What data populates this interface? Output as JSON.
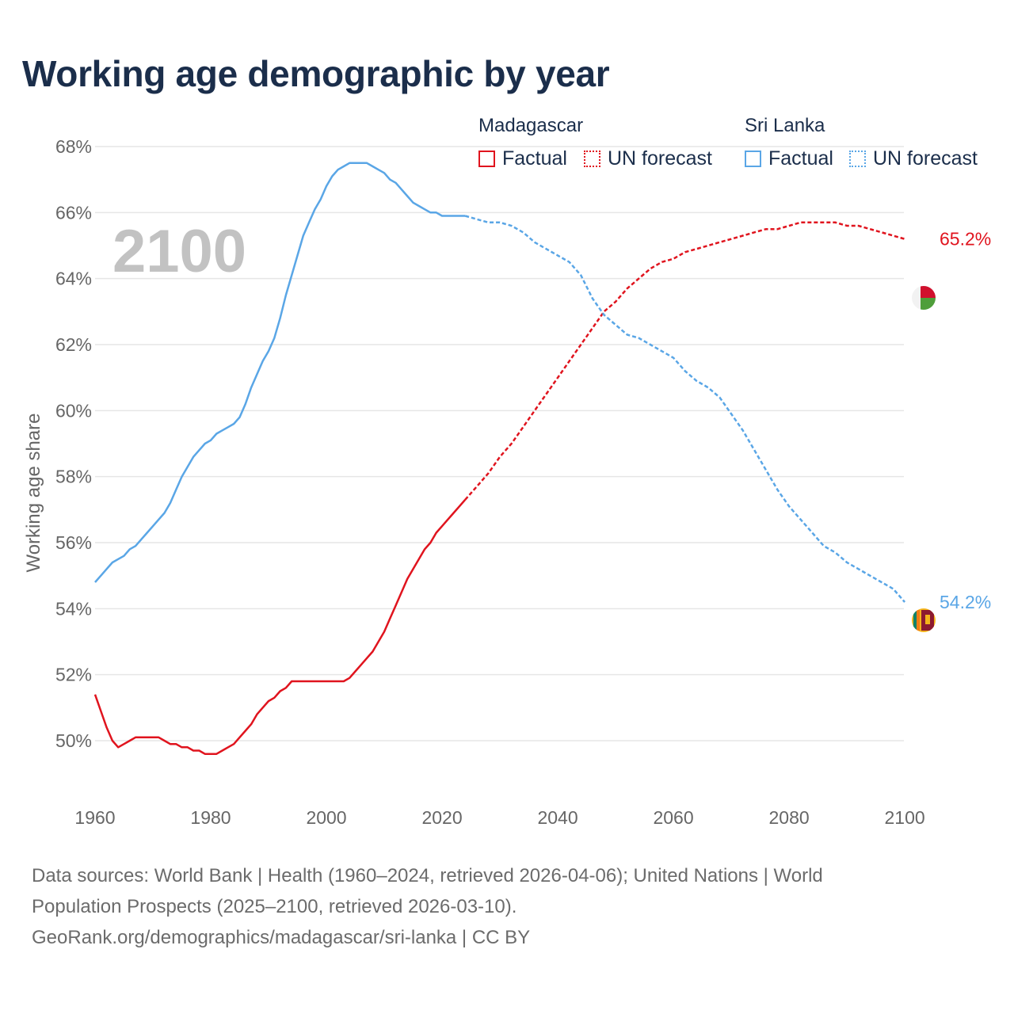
{
  "title": "Working age demographic by year",
  "legend": {
    "madagascar": {
      "title": "Madagascar",
      "factual": "Factual",
      "forecast": "UN forecast",
      "color": "#e0141e"
    },
    "srilanka": {
      "title": "Sri Lanka",
      "factual": "Factual",
      "forecast": "UN forecast",
      "color": "#5aa6e6"
    }
  },
  "year_watermark": "2100",
  "footer": {
    "line1": "Data sources: World Bank | Health (1960–2024, retrieved 2026-04-06); United Nations | World",
    "line2": "Population Prospects (2025–2100, retrieved 2026-03-10).",
    "line3": "GeoRank.org/demographics/madagascar/sri-lanka | CC BY"
  },
  "chart_data": {
    "type": "line",
    "title": "Working age demographic by year",
    "xlabel": "",
    "ylabel": "Working age share",
    "xlim": [
      1960,
      2103
    ],
    "ylim": [
      48.2,
      68.6
    ],
    "xticks": [
      1960,
      1980,
      2000,
      2020,
      2040,
      2060,
      2080,
      2100
    ],
    "yticks": [
      50,
      52,
      54,
      56,
      58,
      60,
      62,
      64,
      66,
      68
    ],
    "ytick_suffix": "%",
    "forecast_start": 2024,
    "series": [
      {
        "name": "Madagascar",
        "color": "#e0141e",
        "end_label": "65.2%",
        "points": [
          [
            1960,
            51.4
          ],
          [
            1961,
            50.9
          ],
          [
            1962,
            50.4
          ],
          [
            1963,
            50.0
          ],
          [
            1964,
            49.8
          ],
          [
            1965,
            49.9
          ],
          [
            1966,
            50.0
          ],
          [
            1967,
            50.1
          ],
          [
            1968,
            50.1
          ],
          [
            1969,
            50.1
          ],
          [
            1970,
            50.1
          ],
          [
            1971,
            50.1
          ],
          [
            1972,
            50.0
          ],
          [
            1973,
            49.9
          ],
          [
            1974,
            49.9
          ],
          [
            1975,
            49.8
          ],
          [
            1976,
            49.8
          ],
          [
            1977,
            49.7
          ],
          [
            1978,
            49.7
          ],
          [
            1979,
            49.6
          ],
          [
            1980,
            49.6
          ],
          [
            1981,
            49.6
          ],
          [
            1982,
            49.7
          ],
          [
            1983,
            49.8
          ],
          [
            1984,
            49.9
          ],
          [
            1985,
            50.1
          ],
          [
            1986,
            50.3
          ],
          [
            1987,
            50.5
          ],
          [
            1988,
            50.8
          ],
          [
            1989,
            51.0
          ],
          [
            1990,
            51.2
          ],
          [
            1991,
            51.3
          ],
          [
            1992,
            51.5
          ],
          [
            1993,
            51.6
          ],
          [
            1994,
            51.8
          ],
          [
            1995,
            51.8
          ],
          [
            1996,
            51.8
          ],
          [
            1997,
            51.8
          ],
          [
            1998,
            51.8
          ],
          [
            1999,
            51.8
          ],
          [
            2000,
            51.8
          ],
          [
            2001,
            51.8
          ],
          [
            2002,
            51.8
          ],
          [
            2003,
            51.8
          ],
          [
            2004,
            51.9
          ],
          [
            2005,
            52.1
          ],
          [
            2006,
            52.3
          ],
          [
            2007,
            52.5
          ],
          [
            2008,
            52.7
          ],
          [
            2009,
            53.0
          ],
          [
            2010,
            53.3
          ],
          [
            2011,
            53.7
          ],
          [
            2012,
            54.1
          ],
          [
            2013,
            54.5
          ],
          [
            2014,
            54.9
          ],
          [
            2015,
            55.2
          ],
          [
            2016,
            55.5
          ],
          [
            2017,
            55.8
          ],
          [
            2018,
            56.0
          ],
          [
            2019,
            56.3
          ],
          [
            2020,
            56.5
          ],
          [
            2021,
            56.7
          ],
          [
            2022,
            56.9
          ],
          [
            2023,
            57.1
          ],
          [
            2024,
            57.3
          ],
          [
            2026,
            57.7
          ],
          [
            2028,
            58.1
          ],
          [
            2030,
            58.6
          ],
          [
            2032,
            59.0
          ],
          [
            2034,
            59.5
          ],
          [
            2036,
            60.0
          ],
          [
            2038,
            60.5
          ],
          [
            2040,
            61.0
          ],
          [
            2042,
            61.5
          ],
          [
            2044,
            62.0
          ],
          [
            2046,
            62.5
          ],
          [
            2048,
            63.0
          ],
          [
            2050,
            63.3
          ],
          [
            2052,
            63.7
          ],
          [
            2054,
            64.0
          ],
          [
            2056,
            64.3
          ],
          [
            2058,
            64.5
          ],
          [
            2060,
            64.6
          ],
          [
            2062,
            64.8
          ],
          [
            2064,
            64.9
          ],
          [
            2066,
            65.0
          ],
          [
            2068,
            65.1
          ],
          [
            2070,
            65.2
          ],
          [
            2072,
            65.3
          ],
          [
            2074,
            65.4
          ],
          [
            2076,
            65.5
          ],
          [
            2078,
            65.5
          ],
          [
            2080,
            65.6
          ],
          [
            2082,
            65.7
          ],
          [
            2084,
            65.7
          ],
          [
            2086,
            65.7
          ],
          [
            2088,
            65.7
          ],
          [
            2090,
            65.6
          ],
          [
            2092,
            65.6
          ],
          [
            2094,
            65.5
          ],
          [
            2096,
            65.4
          ],
          [
            2098,
            65.3
          ],
          [
            2100,
            65.2
          ]
        ]
      },
      {
        "name": "Sri Lanka",
        "color": "#5aa6e6",
        "end_label": "54.2%",
        "points": [
          [
            1960,
            54.8
          ],
          [
            1961,
            55.0
          ],
          [
            1962,
            55.2
          ],
          [
            1963,
            55.4
          ],
          [
            1964,
            55.5
          ],
          [
            1965,
            55.6
          ],
          [
            1966,
            55.8
          ],
          [
            1967,
            55.9
          ],
          [
            1968,
            56.1
          ],
          [
            1969,
            56.3
          ],
          [
            1970,
            56.5
          ],
          [
            1971,
            56.7
          ],
          [
            1972,
            56.9
          ],
          [
            1973,
            57.2
          ],
          [
            1974,
            57.6
          ],
          [
            1975,
            58.0
          ],
          [
            1976,
            58.3
          ],
          [
            1977,
            58.6
          ],
          [
            1978,
            58.8
          ],
          [
            1979,
            59.0
          ],
          [
            1980,
            59.1
          ],
          [
            1981,
            59.3
          ],
          [
            1982,
            59.4
          ],
          [
            1983,
            59.5
          ],
          [
            1984,
            59.6
          ],
          [
            1985,
            59.8
          ],
          [
            1986,
            60.2
          ],
          [
            1987,
            60.7
          ],
          [
            1988,
            61.1
          ],
          [
            1989,
            61.5
          ],
          [
            1990,
            61.8
          ],
          [
            1991,
            62.2
          ],
          [
            1992,
            62.8
          ],
          [
            1993,
            63.5
          ],
          [
            1994,
            64.1
          ],
          [
            1995,
            64.7
          ],
          [
            1996,
            65.3
          ],
          [
            1997,
            65.7
          ],
          [
            1998,
            66.1
          ],
          [
            1999,
            66.4
          ],
          [
            2000,
            66.8
          ],
          [
            2001,
            67.1
          ],
          [
            2002,
            67.3
          ],
          [
            2003,
            67.4
          ],
          [
            2004,
            67.5
          ],
          [
            2005,
            67.5
          ],
          [
            2006,
            67.5
          ],
          [
            2007,
            67.5
          ],
          [
            2008,
            67.4
          ],
          [
            2009,
            67.3
          ],
          [
            2010,
            67.2
          ],
          [
            2011,
            67.0
          ],
          [
            2012,
            66.9
          ],
          [
            2013,
            66.7
          ],
          [
            2014,
            66.5
          ],
          [
            2015,
            66.3
          ],
          [
            2016,
            66.2
          ],
          [
            2017,
            66.1
          ],
          [
            2018,
            66.0
          ],
          [
            2019,
            66.0
          ],
          [
            2020,
            65.9
          ],
          [
            2021,
            65.9
          ],
          [
            2022,
            65.9
          ],
          [
            2023,
            65.9
          ],
          [
            2024,
            65.9
          ],
          [
            2026,
            65.8
          ],
          [
            2028,
            65.7
          ],
          [
            2030,
            65.7
          ],
          [
            2032,
            65.6
          ],
          [
            2034,
            65.4
          ],
          [
            2036,
            65.1
          ],
          [
            2038,
            64.9
          ],
          [
            2040,
            64.7
          ],
          [
            2042,
            64.5
          ],
          [
            2044,
            64.1
          ],
          [
            2046,
            63.4
          ],
          [
            2048,
            62.9
          ],
          [
            2050,
            62.6
          ],
          [
            2052,
            62.3
          ],
          [
            2054,
            62.2
          ],
          [
            2056,
            62.0
          ],
          [
            2058,
            61.8
          ],
          [
            2060,
            61.6
          ],
          [
            2062,
            61.2
          ],
          [
            2064,
            60.9
          ],
          [
            2066,
            60.7
          ],
          [
            2068,
            60.4
          ],
          [
            2070,
            59.9
          ],
          [
            2072,
            59.4
          ],
          [
            2074,
            58.8
          ],
          [
            2076,
            58.2
          ],
          [
            2078,
            57.6
          ],
          [
            2080,
            57.1
          ],
          [
            2082,
            56.7
          ],
          [
            2084,
            56.3
          ],
          [
            2086,
            55.9
          ],
          [
            2088,
            55.7
          ],
          [
            2090,
            55.4
          ],
          [
            2092,
            55.2
          ],
          [
            2094,
            55.0
          ],
          [
            2096,
            54.8
          ],
          [
            2098,
            54.6
          ],
          [
            2100,
            54.2
          ]
        ]
      }
    ]
  }
}
